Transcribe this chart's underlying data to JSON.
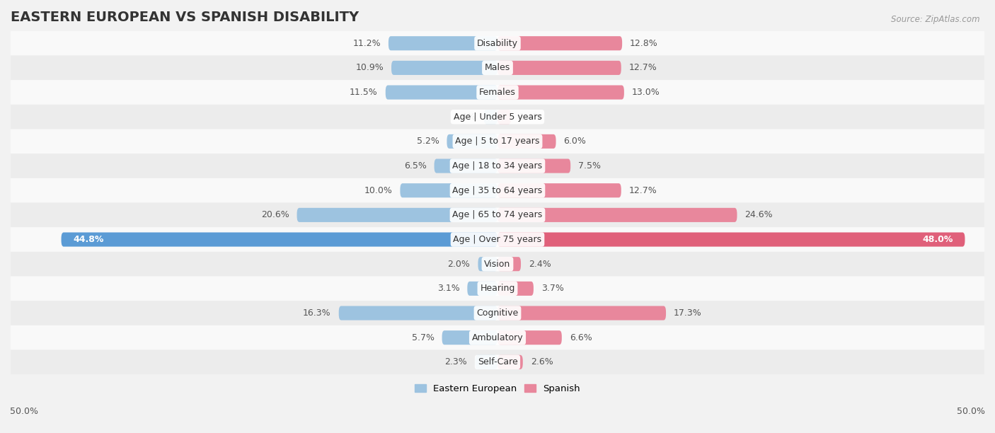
{
  "title": "EASTERN EUROPEAN VS SPANISH DISABILITY",
  "source": "Source: ZipAtlas.com",
  "categories": [
    "Disability",
    "Males",
    "Females",
    "Age | Under 5 years",
    "Age | 5 to 17 years",
    "Age | 18 to 34 years",
    "Age | 35 to 64 years",
    "Age | 65 to 74 years",
    "Age | Over 75 years",
    "Vision",
    "Hearing",
    "Cognitive",
    "Ambulatory",
    "Self-Care"
  ],
  "eastern_european": [
    11.2,
    10.9,
    11.5,
    1.4,
    5.2,
    6.5,
    10.0,
    20.6,
    44.8,
    2.0,
    3.1,
    16.3,
    5.7,
    2.3
  ],
  "spanish": [
    12.8,
    12.7,
    13.0,
    1.4,
    6.0,
    7.5,
    12.7,
    24.6,
    48.0,
    2.4,
    3.7,
    17.3,
    6.6,
    2.6
  ],
  "ee_color": "#9dc3e0",
  "sp_color": "#e8879c",
  "bg_color": "#f2f2f2",
  "row_colors": [
    "#f9f9f9",
    "#ececec"
  ],
  "axis_limit": 50.0,
  "bar_height": 0.58,
  "title_fontsize": 14,
  "label_fontsize": 9,
  "cat_fontsize": 9,
  "tick_fontsize": 9,
  "over75_ee_color": "#5b9bd5",
  "over75_sp_color": "#e0607a"
}
